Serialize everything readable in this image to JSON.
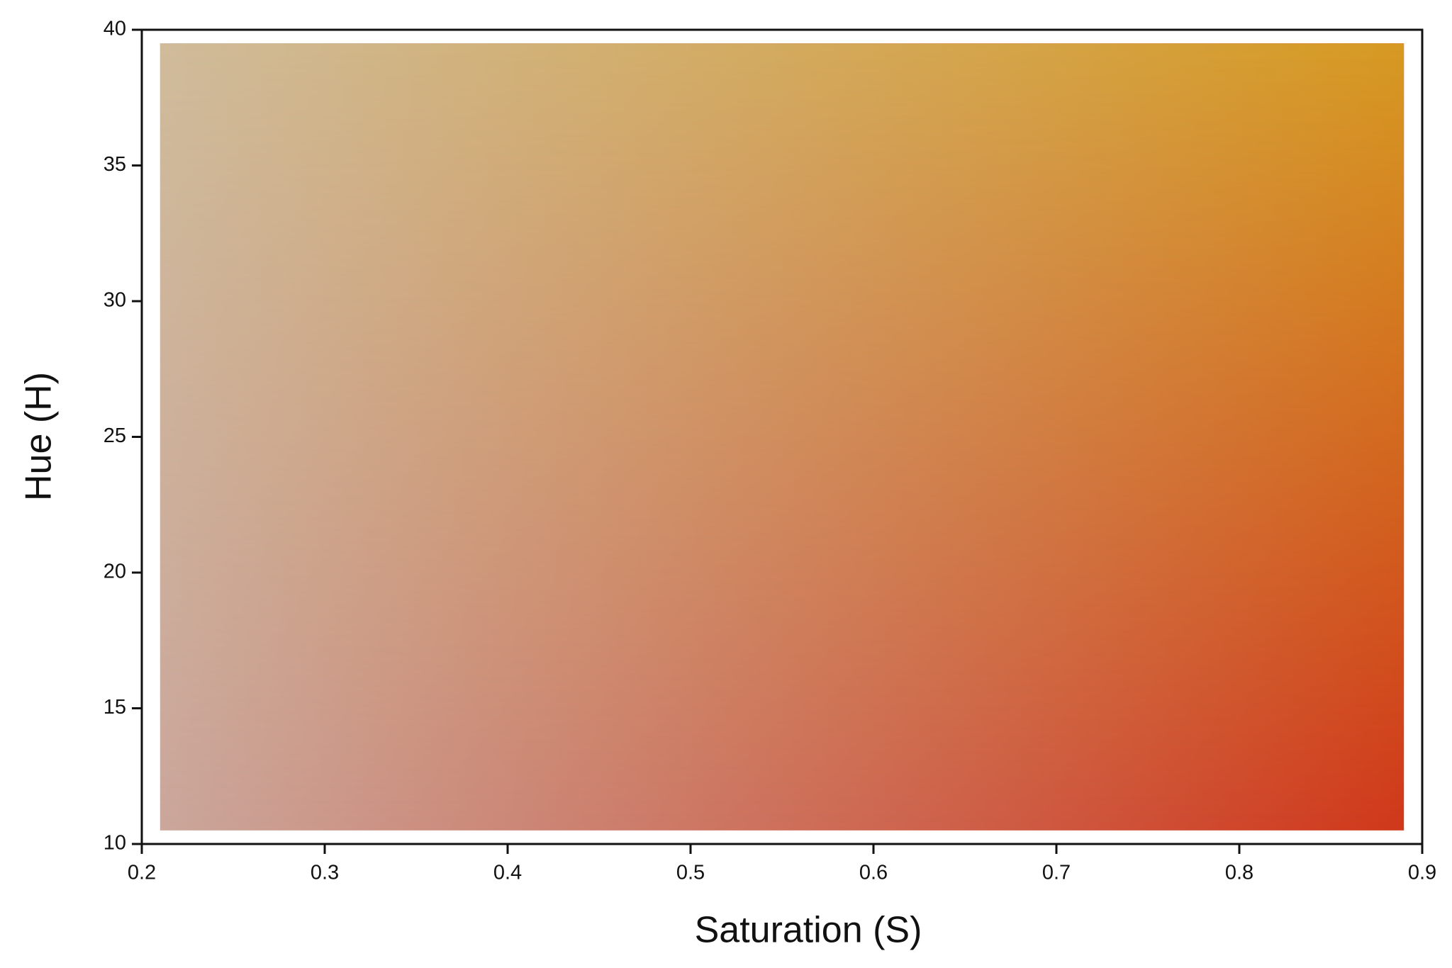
{
  "chart_data": {
    "type": "gradient",
    "xlabel": "Saturation (S)",
    "ylabel": "Hue (H)",
    "xlim": [
      0.2,
      0.9
    ],
    "ylim": [
      10,
      40
    ],
    "xticks": [
      0.2,
      0.3,
      0.4,
      0.5,
      0.6,
      0.7,
      0.8,
      0.9
    ],
    "yticks": [
      10,
      15,
      20,
      25,
      30,
      35,
      40
    ],
    "x_range": [
      0.21,
      0.89
    ],
    "y_range": [
      10.5,
      39.5
    ],
    "colors": {
      "top_left": "#cfbb9b",
      "top_right": "#d69a22",
      "bottom_left": "#cba79c",
      "bottom_right": "#d0381b"
    }
  }
}
